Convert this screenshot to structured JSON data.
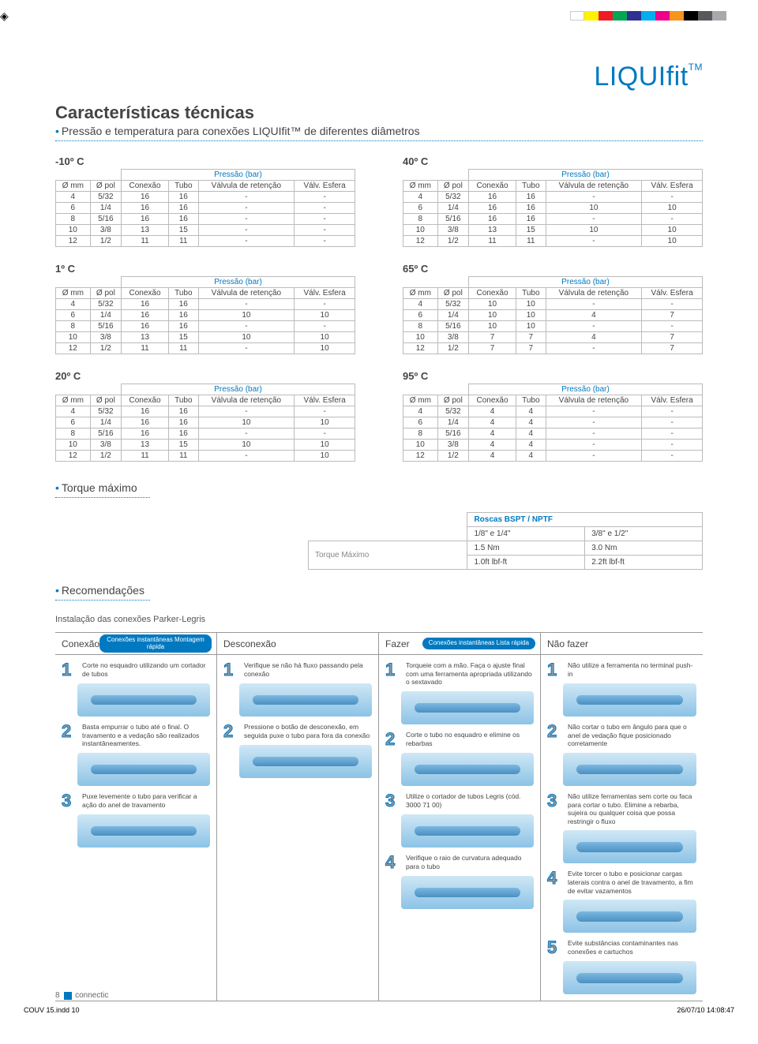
{
  "brand": "LIQUIfit",
  "brand_tm": "TM",
  "main_title": "Características técnicas",
  "subtitle": "Pressão e temperatura para conexões LIQUIfit™ de diferentes diâmetros",
  "color_bar": [
    "#ffffff",
    "#fff200",
    "#ee1c25",
    "#00a651",
    "#2e3192",
    "#00aeef",
    "#ec008c",
    "#f7941d",
    "#000000",
    "#58595b",
    "#a7a9ac"
  ],
  "table_headers": {
    "pressure_bar": "Pressão (bar)",
    "omm": "Ø mm",
    "opol": "Ø pol",
    "conexao": "Conexão",
    "tubo": "Tubo",
    "valv_ret": "Válvula de retenção",
    "valv_esf": "Válv. Esfera"
  },
  "tables": [
    {
      "temp": "-10º C",
      "rows": [
        [
          "4",
          "5/32",
          "16",
          "16",
          "-",
          "-"
        ],
        [
          "6",
          "1/4",
          "16",
          "16",
          "-",
          "-"
        ],
        [
          "8",
          "5/16",
          "16",
          "16",
          "-",
          "-"
        ],
        [
          "10",
          "3/8",
          "13",
          "15",
          "-",
          "-"
        ],
        [
          "12",
          "1/2",
          "11",
          "11",
          "-",
          "-"
        ]
      ]
    },
    {
      "temp": "40º C",
      "rows": [
        [
          "4",
          "5/32",
          "16",
          "16",
          "-",
          "-"
        ],
        [
          "6",
          "1/4",
          "16",
          "16",
          "10",
          "10"
        ],
        [
          "8",
          "5/16",
          "16",
          "16",
          "-",
          "-"
        ],
        [
          "10",
          "3/8",
          "13",
          "15",
          "10",
          "10"
        ],
        [
          "12",
          "1/2",
          "11",
          "11",
          "-",
          "10"
        ]
      ]
    },
    {
      "temp": "1º C",
      "rows": [
        [
          "4",
          "5/32",
          "16",
          "16",
          "-",
          "-"
        ],
        [
          "6",
          "1/4",
          "16",
          "16",
          "10",
          "10"
        ],
        [
          "8",
          "5/16",
          "16",
          "16",
          "-",
          "-"
        ],
        [
          "10",
          "3/8",
          "13",
          "15",
          "10",
          "10"
        ],
        [
          "12",
          "1/2",
          "11",
          "11",
          "-",
          "10"
        ]
      ]
    },
    {
      "temp": "65º C",
      "rows": [
        [
          "4",
          "5/32",
          "10",
          "10",
          "-",
          "-"
        ],
        [
          "6",
          "1/4",
          "10",
          "10",
          "4",
          "7"
        ],
        [
          "8",
          "5/16",
          "10",
          "10",
          "-",
          "-"
        ],
        [
          "10",
          "3/8",
          "7",
          "7",
          "4",
          "7"
        ],
        [
          "12",
          "1/2",
          "7",
          "7",
          "-",
          "7"
        ]
      ]
    },
    {
      "temp": "20º C",
      "rows": [
        [
          "4",
          "5/32",
          "16",
          "16",
          "-",
          "-"
        ],
        [
          "6",
          "1/4",
          "16",
          "16",
          "10",
          "10"
        ],
        [
          "8",
          "5/16",
          "16",
          "16",
          "-",
          "-"
        ],
        [
          "10",
          "3/8",
          "13",
          "15",
          "10",
          "10"
        ],
        [
          "12",
          "1/2",
          "11",
          "11",
          "-",
          "10"
        ]
      ]
    },
    {
      "temp": "95º C",
      "rows": [
        [
          "4",
          "5/32",
          "4",
          "4",
          "-",
          "-"
        ],
        [
          "6",
          "1/4",
          "4",
          "4",
          "-",
          "-"
        ],
        [
          "8",
          "5/16",
          "4",
          "4",
          "-",
          "-"
        ],
        [
          "10",
          "3/8",
          "4",
          "4",
          "-",
          "-"
        ],
        [
          "12",
          "1/2",
          "4",
          "4",
          "-",
          "-"
        ]
      ]
    }
  ],
  "torque": {
    "title": "Torque máximo",
    "row_head": "Roscas BSPT / NPTF",
    "cols": [
      "1/8\" e 1/4\"",
      "3/8\" e 1/2\""
    ],
    "label": "Torque Máximo",
    "vals_nm": [
      "1.5 Nm",
      "3.0 Nm"
    ],
    "vals_ft": [
      "1.0ft lbf-ft",
      "2.2ft lbf-ft"
    ]
  },
  "recommendations": {
    "title": "Recomendações",
    "subtitle": "Instalação das conexões Parker-Legris",
    "pill1": "Conexões instantâneas Montagem rápida",
    "pill2": "Conexões instantâneas Lista rápida",
    "col1": {
      "head": "Conexão",
      "steps": [
        "Corte no esquadro utilizando um cortador de tubos",
        "Basta empurrar o tubo até o final. O travamento e a vedação são realizados instantâneamentes.",
        "Puxe levemente o tubo para verificar a ação do anel de travamento"
      ]
    },
    "col2": {
      "head": "Desconexão",
      "steps": [
        "Verifique se não há fluxo passando pela conexão",
        "Pressione o botão de desconexão, em seguida puxe o tubo para fora da conexão"
      ]
    },
    "col3": {
      "head": "Fazer",
      "steps": [
        "Torqueie com a mão. Faça o ajuste final com uma ferramenta apropriada utilizando o sextavado",
        "Corte o tubo no esquadro e elimine os rebarbas",
        "Utilize o cortador de tubos Legris (cód. 3000 71 00)",
        "Verifique o raio de curvatura adequado para o tubo"
      ]
    },
    "col4": {
      "head": "Não fazer",
      "steps": [
        "Não utilize a ferramenta no terminal push-in",
        "Não cortar o tubo em ângulo para que o anel de vedação fique posicionado corretamente",
        "Não utilize ferramentas sem corte ou faca para cortar o tubo. Elimine a rebarba, sujeira ou qualquer coisa que possa restringir o fluxo",
        "Evite torcer o tubo e posicionar cargas laterais contra o anel de travamento, a fim de evitar vazamentos",
        "Evite substâncias contaminantes nas conexões e cartuchos"
      ]
    }
  },
  "footer": {
    "page": "8",
    "brand": "connectic"
  },
  "stamp": {
    "file": "COUV 15.indd   10",
    "date": "26/07/10   14:08:47"
  }
}
